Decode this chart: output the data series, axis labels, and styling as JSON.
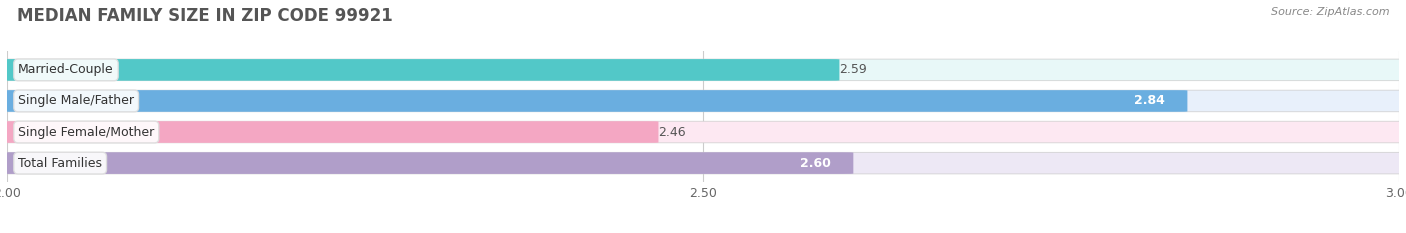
{
  "title": "MEDIAN FAMILY SIZE IN ZIP CODE 99921",
  "source": "Source: ZipAtlas.com",
  "categories": [
    "Married-Couple",
    "Single Male/Father",
    "Single Female/Mother",
    "Total Families"
  ],
  "values": [
    2.59,
    2.84,
    2.46,
    2.6
  ],
  "bar_colors": [
    "#52c8c8",
    "#6aaee0",
    "#f4a7c3",
    "#b09ec9"
  ],
  "bar_bg_colors": [
    "#e8f8f8",
    "#e8f0fb",
    "#fde8f2",
    "#ede8f5"
  ],
  "value_colors": [
    "#444444",
    "#ffffff",
    "#444444",
    "#ffffff"
  ],
  "xmin": 2.0,
  "xmax": 3.0,
  "xticks": [
    2.0,
    2.5,
    3.0
  ],
  "background_color": "#ffffff",
  "bar_height": 0.68,
  "title_fontsize": 12,
  "label_fontsize": 9,
  "value_fontsize": 9,
  "tick_fontsize": 9,
  "source_fontsize": 8
}
